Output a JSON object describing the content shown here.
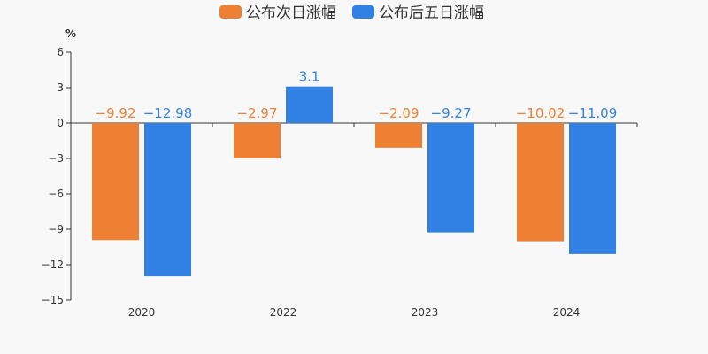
{
  "chart_data": {
    "type": "bar",
    "categories": [
      "2020",
      "2022",
      "2023",
      "2024"
    ],
    "series": [
      {
        "name": "公布次日涨幅",
        "color": "#ee8033",
        "values": [
          -9.92,
          -2.97,
          -2.09,
          -10.02
        ],
        "labels": [
          "−9.92",
          "−2.97",
          "−2.09",
          "−10.02"
        ]
      },
      {
        "name": "公布后五日涨幅",
        "color": "#3181e4",
        "values": [
          -12.98,
          3.1,
          -9.27,
          -11.09
        ],
        "labels": [
          "−12.98",
          "3.1",
          "−9.27",
          "−11.09"
        ]
      }
    ],
    "y_unit": "%",
    "ylim": [
      -15,
      6
    ],
    "yticks": [
      6,
      3,
      0,
      -3,
      -6,
      -9,
      -12,
      -15
    ],
    "ytick_labels": [
      "6",
      "3",
      "0",
      "−3",
      "−6",
      "−9",
      "−12",
      "−15"
    ],
    "grid": false,
    "legend": "top-center"
  }
}
